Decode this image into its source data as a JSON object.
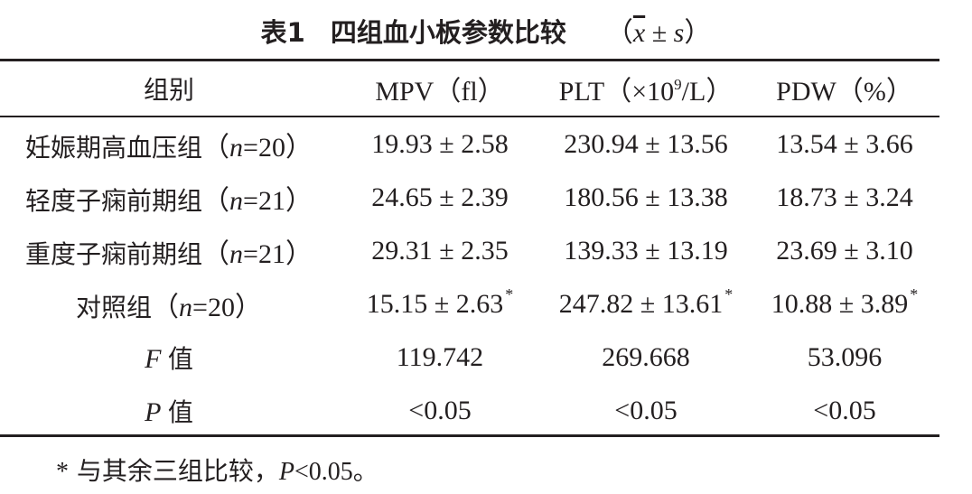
{
  "title": {
    "label": "表1",
    "name": "四组血小板参数比较",
    "stat_open": "（",
    "stat_mean": "x",
    "stat_sep": " ± ",
    "stat_sd": "s",
    "stat_close": "）"
  },
  "table": {
    "headers": {
      "group": "组别",
      "mpv": "MPV（fl）",
      "plt_prefix": "PLT（×10",
      "plt_exp": "9",
      "plt_suffix": "/L）",
      "pdw": "PDW（%）"
    },
    "rows": [
      {
        "label": "妊娠期高血压组",
        "n_open": "（",
        "n_var": "n",
        "n_val": "=20",
        "n_close": "）",
        "mpv": "19.93 ± 2.58",
        "plt": "230.94 ± 13.56",
        "pdw": "13.54 ± 3.66"
      },
      {
        "label": "轻度子痫前期组",
        "n_open": "（",
        "n_var": "n",
        "n_val": "=21",
        "n_close": "）",
        "mpv": "24.65 ± 2.39",
        "plt": "180.56 ± 13.38",
        "pdw": "18.73 ± 3.24"
      },
      {
        "label": "重度子痫前期组",
        "n_open": "（",
        "n_var": "n",
        "n_val": "=21",
        "n_close": "）",
        "mpv": "29.31 ± 2.35",
        "plt": "139.33 ± 13.19",
        "pdw": "23.69 ± 3.10"
      },
      {
        "label": "对照组",
        "n_open": "（",
        "n_var": "n",
        "n_val": "=20",
        "n_close": "）",
        "mpv": "15.15 ± 2.63",
        "plt": "247.82 ± 13.61",
        "pdw": "10.88 ± 3.89",
        "mark": "*"
      }
    ],
    "f_row": {
      "var": "F",
      "label": "值",
      "mpv": "119.742",
      "plt": "269.668",
      "pdw": "53.096"
    },
    "p_row": {
      "var": "P",
      "label": "值",
      "mpv": "<0.05",
      "plt": "<0.05",
      "pdw": "<0.05"
    }
  },
  "footnote": {
    "mark": "*",
    "text": " 与其余三组比较，",
    "var": "P",
    "value": "<0.05。"
  }
}
